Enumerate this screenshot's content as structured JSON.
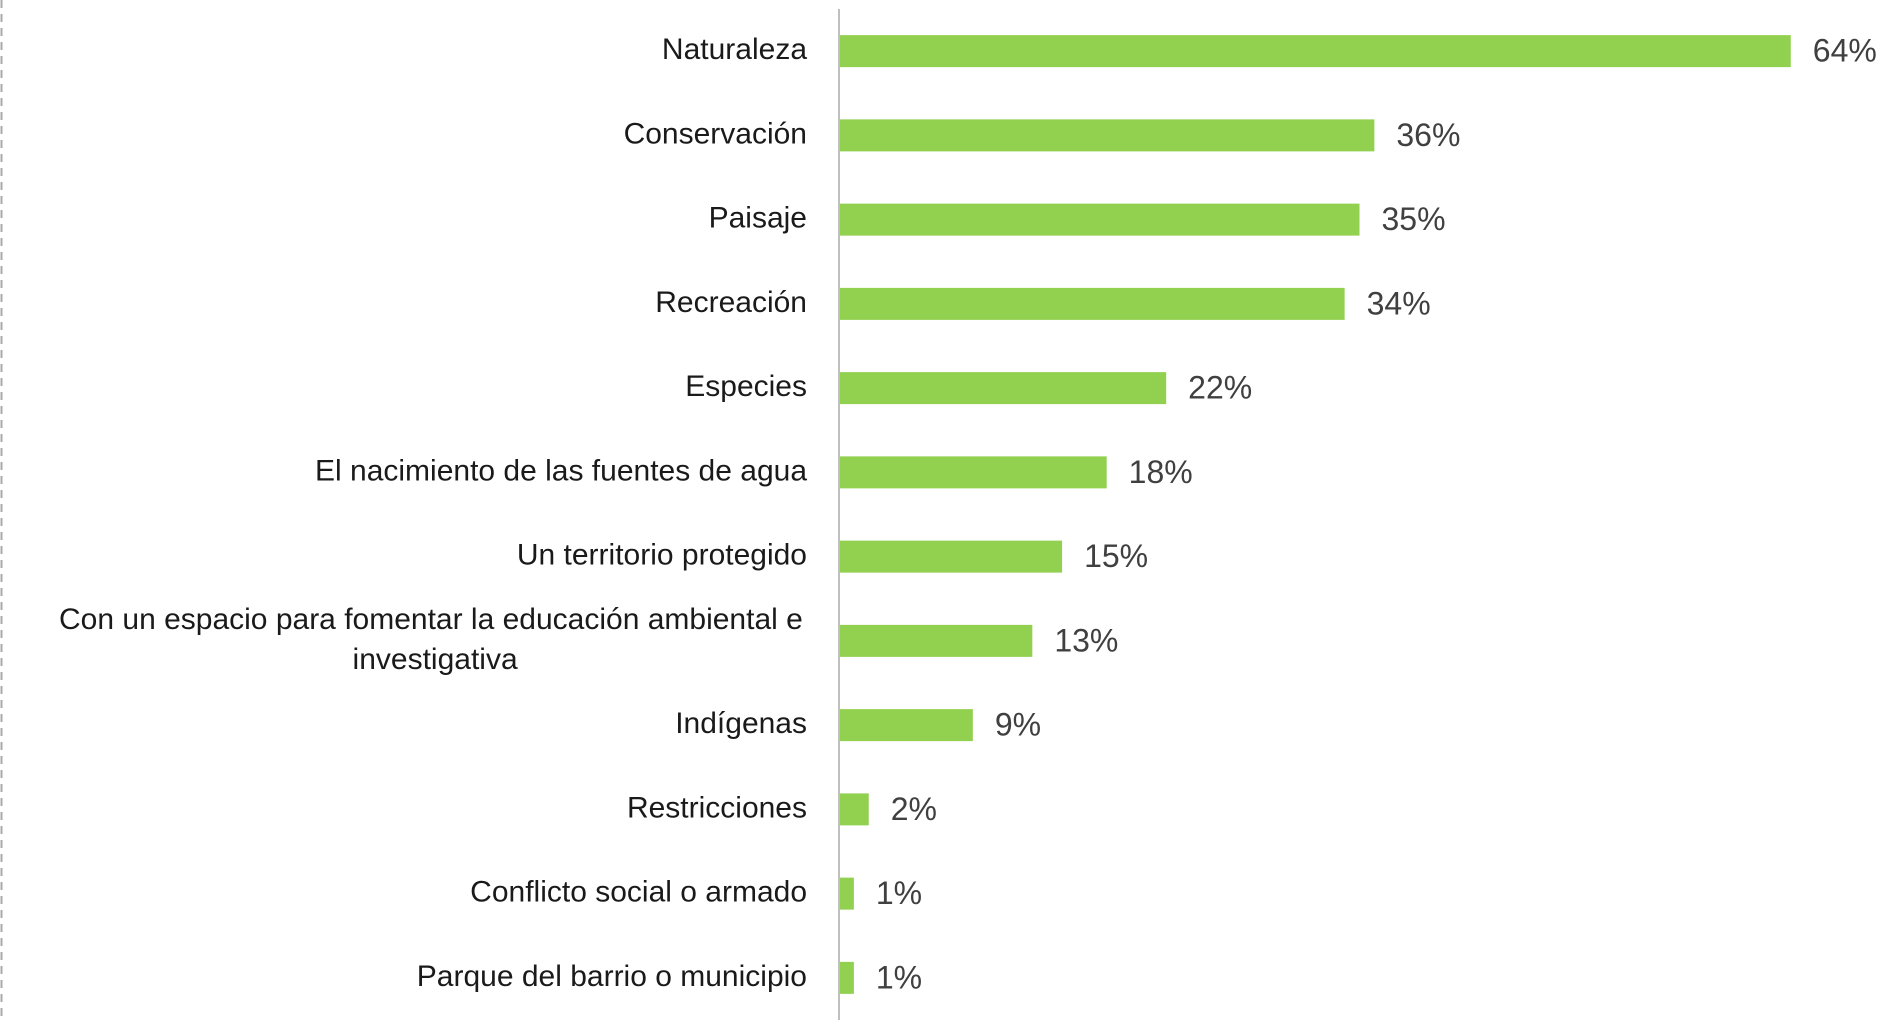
{
  "chart_data": {
    "type": "barh",
    "categories": [
      "Naturaleza",
      "Conservación",
      "Paisaje",
      "Recreación",
      "Especies",
      "El nacimiento de las fuentes de agua",
      "Un territorio protegido",
      "Con un espacio para fomentar la educación ambiental e investigativa",
      "Indígenas",
      "Restricciones",
      "Conflicto social o armado",
      "Parque del barrio o municipio"
    ],
    "values": [
      64,
      36,
      35,
      34,
      22,
      18,
      15,
      13,
      9,
      2,
      1,
      1
    ],
    "value_labels": [
      "64%",
      "36%",
      "35%",
      "34%",
      "22%",
      "18%",
      "15%",
      "13%",
      "9%",
      "2%",
      "1%",
      "1%"
    ],
    "color": "#92d050",
    "xlim": [
      0,
      70
    ]
  }
}
